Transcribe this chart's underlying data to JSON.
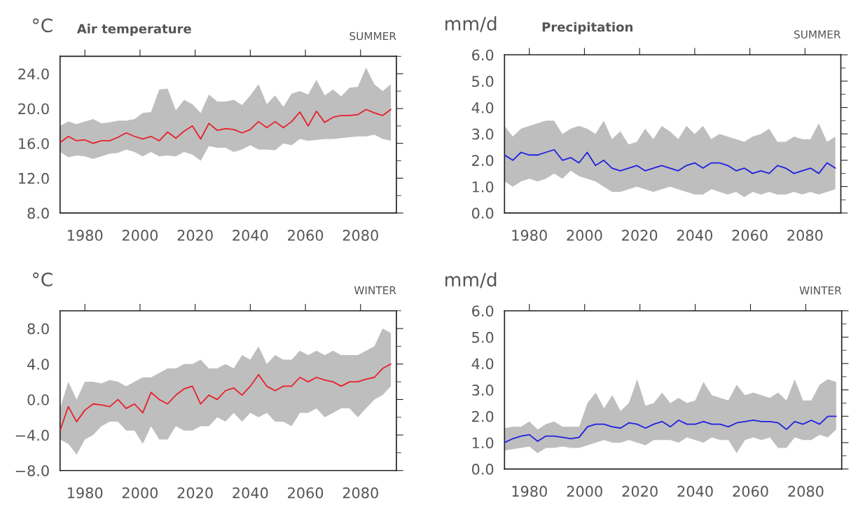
{
  "chart_data": [
    {
      "type": "line",
      "title": "Air temperature",
      "subtitle": "SUMMER",
      "ylabel": "°C",
      "xlim": [
        1971,
        2093
      ],
      "xticks": [
        1980,
        2000,
        2020,
        2040,
        2060,
        2080
      ],
      "ylim": [
        8,
        26
      ],
      "yticks": [
        {
          "value": 8,
          "label": "8.0"
        },
        {
          "value": 12,
          "label": "12.0"
        },
        {
          "value": 16,
          "label": "16.0"
        },
        {
          "value": 20,
          "label": "20.0"
        },
        {
          "value": 24,
          "label": "24.0"
        }
      ],
      "grid": false,
      "legend": false,
      "x": [
        1971,
        1974,
        1977,
        1980,
        1983,
        1986,
        1989,
        1992,
        1995,
        1998,
        2001,
        2004,
        2007,
        2010,
        2013,
        2016,
        2019,
        2022,
        2025,
        2028,
        2031,
        2034,
        2037,
        2040,
        2043,
        2046,
        2049,
        2052,
        2055,
        2058,
        2061,
        2064,
        2067,
        2070,
        2073,
        2076,
        2079,
        2082,
        2085,
        2088,
        2091
      ],
      "series": [
        {
          "color": "#e8202a",
          "values": [
            16.1,
            16.8,
            16.3,
            16.4,
            16.0,
            16.3,
            16.3,
            16.7,
            17.2,
            16.8,
            16.5,
            16.8,
            16.3,
            17.3,
            16.6,
            17.4,
            18.0,
            16.5,
            18.3,
            17.5,
            17.7,
            17.6,
            17.2,
            17.6,
            18.5,
            17.8,
            18.5,
            17.8,
            18.5,
            19.6,
            18.0,
            19.7,
            18.4,
            19.0,
            19.2,
            19.2,
            19.3,
            19.9,
            19.5,
            19.2,
            19.9
          ],
          "upper": [
            18.0,
            18.5,
            18.2,
            18.5,
            18.8,
            18.3,
            18.4,
            18.6,
            18.6,
            18.8,
            19.5,
            19.6,
            22.2,
            22.3,
            19.8,
            21.0,
            20.5,
            19.5,
            21.6,
            20.8,
            20.8,
            21.0,
            20.4,
            21.5,
            22.8,
            20.5,
            21.5,
            20.2,
            21.7,
            22.0,
            21.6,
            23.3,
            21.5,
            22.2,
            21.4,
            22.4,
            22.5,
            24.7,
            22.8,
            22.0,
            22.8
          ],
          "lower": [
            15.0,
            14.4,
            14.6,
            14.5,
            14.2,
            14.5,
            14.8,
            14.9,
            15.3,
            15.0,
            14.5,
            15.0,
            14.5,
            14.6,
            14.5,
            15.0,
            14.7,
            14.0,
            15.7,
            15.5,
            15.5,
            15.0,
            15.3,
            15.8,
            15.3,
            15.3,
            15.2,
            16.0,
            15.8,
            16.5,
            16.3,
            16.4,
            16.5,
            16.5,
            16.6,
            16.7,
            16.8,
            16.8,
            17.0,
            16.5,
            16.3
          ]
        }
      ]
    },
    {
      "type": "line",
      "title": "Precipitation",
      "subtitle": "SUMMER",
      "ylabel": "mm/d",
      "xlim": [
        1971,
        2093
      ],
      "xticks": [
        1980,
        2000,
        2020,
        2040,
        2060,
        2080
      ],
      "ylim": [
        0,
        6
      ],
      "yticks": [
        {
          "value": 0,
          "label": "0.0"
        },
        {
          "value": 1,
          "label": "1.0"
        },
        {
          "value": 2,
          "label": "2.0"
        },
        {
          "value": 3,
          "label": "3.0"
        },
        {
          "value": 4,
          "label": "4.0"
        },
        {
          "value": 5,
          "label": "5.0"
        },
        {
          "value": 6,
          "label": "6.0"
        }
      ],
      "grid": false,
      "legend": false,
      "x": [
        1971,
        1974,
        1977,
        1980,
        1983,
        1986,
        1989,
        1992,
        1995,
        1998,
        2001,
        2004,
        2007,
        2010,
        2013,
        2016,
        2019,
        2022,
        2025,
        2028,
        2031,
        2034,
        2037,
        2040,
        2043,
        2046,
        2049,
        2052,
        2055,
        2058,
        2061,
        2064,
        2067,
        2070,
        2073,
        2076,
        2079,
        2082,
        2085,
        2088,
        2091
      ],
      "series": [
        {
          "color": "#2020e0",
          "values": [
            2.2,
            2.0,
            2.3,
            2.2,
            2.2,
            2.3,
            2.4,
            2.0,
            2.1,
            1.9,
            2.3,
            1.8,
            2.0,
            1.7,
            1.6,
            1.7,
            1.8,
            1.6,
            1.7,
            1.8,
            1.7,
            1.6,
            1.8,
            1.9,
            1.7,
            1.9,
            1.9,
            1.8,
            1.6,
            1.7,
            1.5,
            1.6,
            1.5,
            1.8,
            1.7,
            1.5,
            1.6,
            1.7,
            1.5,
            1.9,
            1.7
          ],
          "upper": [
            3.3,
            2.9,
            3.2,
            3.3,
            3.4,
            3.5,
            3.5,
            3.0,
            3.2,
            3.3,
            3.2,
            3.0,
            3.5,
            2.8,
            3.1,
            2.6,
            2.7,
            3.2,
            2.8,
            3.3,
            3.1,
            2.8,
            3.3,
            3.0,
            3.3,
            2.8,
            3.0,
            2.9,
            2.8,
            2.7,
            2.9,
            3.0,
            3.2,
            2.7,
            2.7,
            2.9,
            2.8,
            2.8,
            3.4,
            2.7,
            2.9
          ],
          "lower": [
            1.2,
            1.0,
            1.2,
            1.3,
            1.2,
            1.3,
            1.5,
            1.3,
            1.6,
            1.4,
            1.3,
            1.2,
            1.0,
            0.8,
            0.8,
            0.9,
            1.0,
            0.9,
            0.8,
            0.9,
            1.0,
            0.9,
            0.8,
            0.7,
            0.7,
            0.9,
            0.8,
            0.7,
            0.8,
            0.6,
            0.8,
            0.7,
            0.8,
            0.7,
            0.7,
            0.8,
            0.7,
            0.8,
            0.7,
            0.8,
            0.9
          ]
        }
      ]
    },
    {
      "type": "line",
      "subtitle": "WINTER",
      "ylabel": "°C",
      "xlim": [
        1971,
        2093
      ],
      "xticks": [
        1980,
        2000,
        2020,
        2040,
        2060,
        2080
      ],
      "ylim": [
        -8,
        10
      ],
      "yticks": [
        {
          "value": -8,
          "label": "−8.0"
        },
        {
          "value": -4,
          "label": "−4.0"
        },
        {
          "value": 0,
          "label": "0.0"
        },
        {
          "value": 4,
          "label": "4.0"
        },
        {
          "value": 8,
          "label": "8.0"
        }
      ],
      "grid": false,
      "legend": false,
      "x": [
        1971,
        1974,
        1977,
        1980,
        1983,
        1986,
        1989,
        1992,
        1995,
        1998,
        2001,
        2004,
        2007,
        2010,
        2013,
        2016,
        2019,
        2022,
        2025,
        2028,
        2031,
        2034,
        2037,
        2040,
        2043,
        2046,
        2049,
        2052,
        2055,
        2058,
        2061,
        2064,
        2067,
        2070,
        2073,
        2076,
        2079,
        2082,
        2085,
        2088,
        2091
      ],
      "series": [
        {
          "color": "#e8202a",
          "values": [
            -3.5,
            -0.8,
            -2.5,
            -1.2,
            -0.5,
            -0.6,
            -0.8,
            0.0,
            -1.0,
            -0.5,
            -1.5,
            0.8,
            0.0,
            -0.5,
            0.5,
            1.2,
            1.5,
            -0.5,
            0.5,
            0.0,
            1.0,
            1.3,
            0.5,
            1.5,
            2.8,
            1.5,
            1.0,
            1.5,
            1.5,
            2.5,
            2.0,
            2.5,
            2.2,
            2.0,
            1.5,
            2.0,
            2.0,
            2.3,
            2.5,
            3.5,
            4.0
          ],
          "upper": [
            -1.0,
            2.0,
            0.0,
            2.0,
            2.0,
            1.8,
            2.2,
            2.0,
            1.5,
            2.0,
            2.5,
            2.5,
            3.0,
            3.5,
            3.5,
            4.0,
            4.0,
            4.5,
            3.5,
            3.5,
            4.0,
            3.5,
            5.0,
            4.5,
            6.0,
            4.0,
            5.0,
            4.5,
            4.5,
            5.5,
            5.0,
            5.5,
            5.0,
            5.5,
            5.0,
            5.0,
            5.0,
            5.5,
            6.0,
            8.0,
            7.5
          ],
          "lower": [
            -4.5,
            -5.0,
            -6.2,
            -4.5,
            -4.0,
            -3.0,
            -2.5,
            -2.5,
            -3.5,
            -3.5,
            -5.0,
            -3.0,
            -4.5,
            -4.5,
            -3.0,
            -3.5,
            -3.5,
            -3.0,
            -3.0,
            -2.0,
            -2.5,
            -1.5,
            -2.5,
            -1.5,
            -2.0,
            -1.5,
            -2.5,
            -2.5,
            -3.0,
            -1.5,
            -1.5,
            -1.0,
            -2.0,
            -1.5,
            -1.0,
            -1.0,
            -2.0,
            -1.0,
            0.0,
            0.5,
            1.5
          ]
        }
      ]
    },
    {
      "type": "line",
      "subtitle": "WINTER",
      "ylabel": "mm/d",
      "xlim": [
        1971,
        2093
      ],
      "xticks": [
        1980,
        2000,
        2020,
        2040,
        2060,
        2080
      ],
      "ylim": [
        0,
        6
      ],
      "yticks": [
        {
          "value": 0,
          "label": "0.0"
        },
        {
          "value": 1,
          "label": "1.0"
        },
        {
          "value": 2,
          "label": "2.0"
        },
        {
          "value": 3,
          "label": "3.0"
        },
        {
          "value": 4,
          "label": "4.0"
        },
        {
          "value": 5,
          "label": "5.0"
        },
        {
          "value": 6,
          "label": "6.0"
        }
      ],
      "grid": false,
      "legend": false,
      "x": [
        1971,
        1974,
        1977,
        1980,
        1983,
        1986,
        1989,
        1992,
        1995,
        1998,
        2001,
        2004,
        2007,
        2010,
        2013,
        2016,
        2019,
        2022,
        2025,
        2028,
        2031,
        2034,
        2037,
        2040,
        2043,
        2046,
        2049,
        2052,
        2055,
        2058,
        2061,
        2064,
        2067,
        2070,
        2073,
        2076,
        2079,
        2082,
        2085,
        2088,
        2091
      ],
      "series": [
        {
          "color": "#2020e0",
          "values": [
            1.0,
            1.15,
            1.25,
            1.3,
            1.05,
            1.25,
            1.25,
            1.2,
            1.15,
            1.2,
            1.6,
            1.7,
            1.7,
            1.6,
            1.55,
            1.75,
            1.7,
            1.55,
            1.7,
            1.8,
            1.6,
            1.85,
            1.7,
            1.7,
            1.8,
            1.7,
            1.7,
            1.6,
            1.75,
            1.8,
            1.85,
            1.8,
            1.8,
            1.75,
            1.5,
            1.8,
            1.7,
            1.85,
            1.7,
            2.0,
            2.0
          ],
          "upper": [
            1.55,
            1.6,
            1.6,
            1.8,
            1.5,
            1.7,
            1.8,
            1.6,
            1.6,
            1.6,
            2.5,
            2.9,
            2.3,
            2.8,
            2.2,
            2.5,
            3.4,
            2.4,
            2.5,
            2.9,
            2.5,
            2.7,
            2.5,
            2.6,
            3.3,
            2.8,
            2.7,
            2.6,
            3.2,
            2.8,
            2.9,
            2.8,
            2.7,
            2.9,
            2.6,
            3.4,
            2.6,
            2.6,
            3.2,
            3.4,
            3.3
          ],
          "lower": [
            0.7,
            0.75,
            0.8,
            0.85,
            0.6,
            0.8,
            0.8,
            0.85,
            0.8,
            0.8,
            0.9,
            1.0,
            1.1,
            1.0,
            1.0,
            1.1,
            1.0,
            0.9,
            1.1,
            1.1,
            1.1,
            1.0,
            1.2,
            1.1,
            1.0,
            1.2,
            1.1,
            1.1,
            0.6,
            1.1,
            1.2,
            1.1,
            1.2,
            0.8,
            0.8,
            1.2,
            1.1,
            1.1,
            1.3,
            1.2,
            1.5
          ]
        }
      ]
    }
  ]
}
